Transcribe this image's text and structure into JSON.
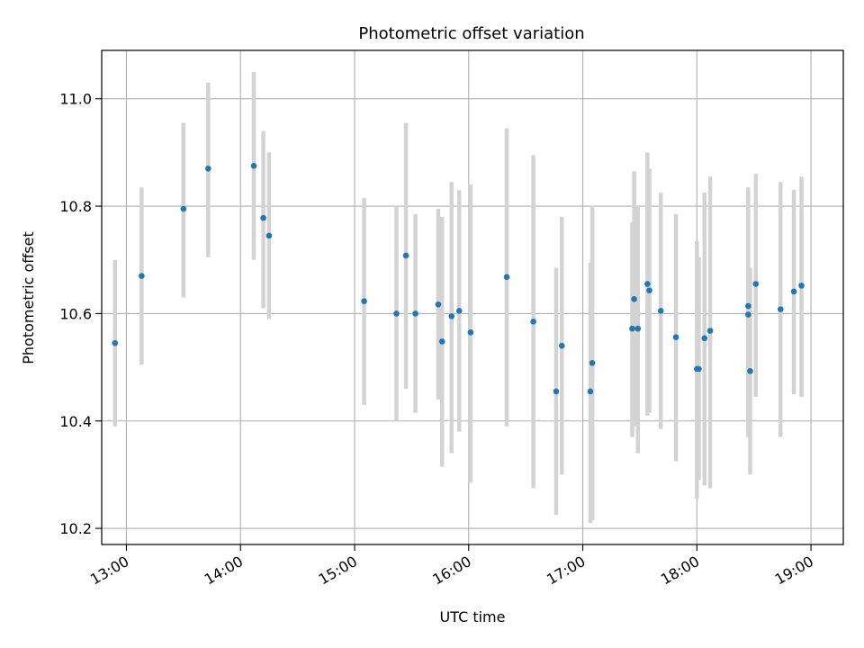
{
  "chart_data": {
    "type": "scatter",
    "title": "Photometric offset variation",
    "xlabel": "UTC time",
    "ylabel": "Photometric offset",
    "x_unit": "UTC time (HH:MM)",
    "xlim": [
      "12:47",
      "19:17"
    ],
    "ylim": [
      10.17,
      11.09
    ],
    "x_ticks": [
      "13:00",
      "14:00",
      "15:00",
      "16:00",
      "17:00",
      "18:00",
      "19:00"
    ],
    "y_ticks": [
      10.2,
      10.4,
      10.6,
      10.8,
      11.0
    ],
    "y_tick_labels": [
      "10.2",
      "10.4",
      "10.6",
      "10.8",
      "11.0"
    ],
    "grid": true,
    "legend": "none",
    "colors": {
      "point": "#1f77b4",
      "errorbar": "#d3d3d3",
      "grid": "#b0b0b0"
    },
    "points": [
      {
        "x": "12:54",
        "y": 10.545,
        "ymin": 10.39,
        "ymax": 10.7
      },
      {
        "x": "13:08",
        "y": 10.67,
        "ymin": 10.505,
        "ymax": 10.835
      },
      {
        "x": "13:30",
        "y": 10.795,
        "ymin": 10.63,
        "ymax": 10.955
      },
      {
        "x": "13:43",
        "y": 10.87,
        "ymin": 10.705,
        "ymax": 11.03
      },
      {
        "x": "14:07",
        "y": 10.875,
        "ymin": 10.7,
        "ymax": 11.05
      },
      {
        "x": "14:12",
        "y": 10.778,
        "ymin": 10.61,
        "ymax": 10.94
      },
      {
        "x": "14:15",
        "y": 10.745,
        "ymin": 10.59,
        "ymax": 10.9
      },
      {
        "x": "15:05",
        "y": 10.623,
        "ymin": 10.43,
        "ymax": 10.815
      },
      {
        "x": "15:22",
        "y": 10.6,
        "ymin": 10.4,
        "ymax": 10.8
      },
      {
        "x": "15:27",
        "y": 10.708,
        "ymin": 10.46,
        "ymax": 10.955
      },
      {
        "x": "15:32",
        "y": 10.6,
        "ymin": 10.415,
        "ymax": 10.785
      },
      {
        "x": "15:44",
        "y": 10.617,
        "ymin": 10.44,
        "ymax": 10.795
      },
      {
        "x": "15:46",
        "y": 10.548,
        "ymin": 10.315,
        "ymax": 10.78
      },
      {
        "x": "15:51",
        "y": 10.595,
        "ymin": 10.34,
        "ymax": 10.845
      },
      {
        "x": "15:55",
        "y": 10.605,
        "ymin": 10.38,
        "ymax": 10.83
      },
      {
        "x": "16:01",
        "y": 10.565,
        "ymin": 10.285,
        "ymax": 10.84
      },
      {
        "x": "16:20",
        "y": 10.668,
        "ymin": 10.39,
        "ymax": 10.945
      },
      {
        "x": "16:34",
        "y": 10.585,
        "ymin": 10.275,
        "ymax": 10.895
      },
      {
        "x": "16:46",
        "y": 10.455,
        "ymin": 10.225,
        "ymax": 10.685
      },
      {
        "x": "16:49",
        "y": 10.54,
        "ymin": 10.3,
        "ymax": 10.78
      },
      {
        "x": "17:04",
        "y": 10.455,
        "ymin": 10.21,
        "ymax": 10.695
      },
      {
        "x": "17:05",
        "y": 10.508,
        "ymin": 10.215,
        "ymax": 10.8
      },
      {
        "x": "17:26",
        "y": 10.572,
        "ymin": 10.37,
        "ymax": 10.77
      },
      {
        "x": "17:27",
        "y": 10.627,
        "ymin": 10.39,
        "ymax": 10.865
      },
      {
        "x": "17:29",
        "y": 10.572,
        "ymin": 10.34,
        "ymax": 10.8
      },
      {
        "x": "17:34",
        "y": 10.655,
        "ymin": 10.41,
        "ymax": 10.9
      },
      {
        "x": "17:35",
        "y": 10.643,
        "ymin": 10.415,
        "ymax": 10.87
      },
      {
        "x": "17:41",
        "y": 10.605,
        "ymin": 10.385,
        "ymax": 10.825
      },
      {
        "x": "17:49",
        "y": 10.556,
        "ymin": 10.325,
        "ymax": 10.785
      },
      {
        "x": "18:00",
        "y": 10.497,
        "ymin": 10.255,
        "ymax": 10.735
      },
      {
        "x": "18:01",
        "y": 10.497,
        "ymin": 10.29,
        "ymax": 10.705
      },
      {
        "x": "18:04",
        "y": 10.554,
        "ymin": 10.28,
        "ymax": 10.825
      },
      {
        "x": "18:07",
        "y": 10.568,
        "ymin": 10.275,
        "ymax": 10.855
      },
      {
        "x": "18:27",
        "y": 10.614,
        "ymin": 10.39,
        "ymax": 10.835
      },
      {
        "x": "18:27",
        "y": 10.598,
        "ymin": 10.37,
        "ymax": 10.825
      },
      {
        "x": "18:28",
        "y": 10.493,
        "ymin": 10.3,
        "ymax": 10.685
      },
      {
        "x": "18:31",
        "y": 10.655,
        "ymin": 10.445,
        "ymax": 10.86
      },
      {
        "x": "18:44",
        "y": 10.608,
        "ymin": 10.37,
        "ymax": 10.845
      },
      {
        "x": "18:51",
        "y": 10.641,
        "ymin": 10.45,
        "ymax": 10.83
      },
      {
        "x": "18:55",
        "y": 10.652,
        "ymin": 10.445,
        "ymax": 10.855
      }
    ]
  }
}
